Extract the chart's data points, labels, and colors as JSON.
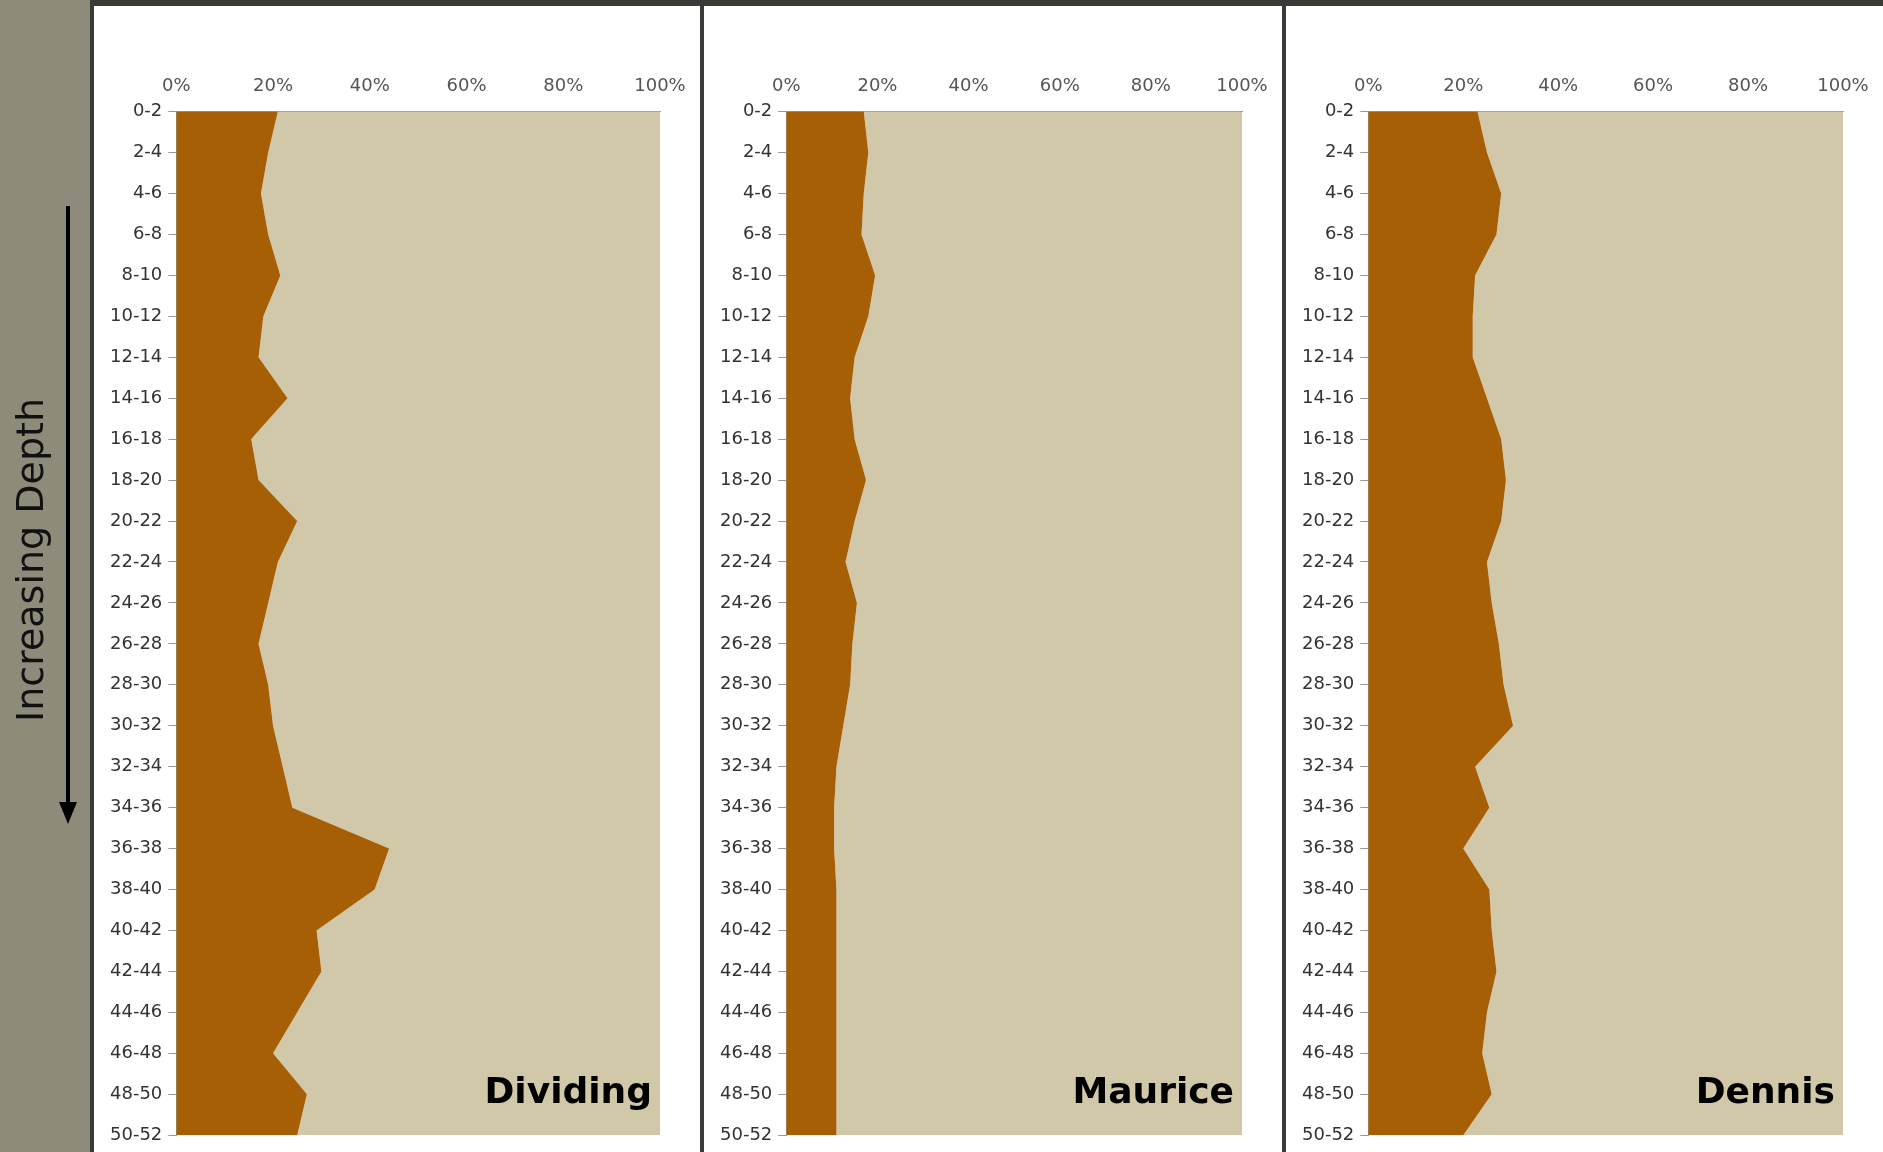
{
  "chart_data": [
    {
      "type": "area",
      "stacked": true,
      "orientation": "horizontal",
      "ylabel": "Increasing Depth",
      "annotations": [
        "Dividing"
      ],
      "categories": [
        "0-2",
        "2-4",
        "4-6",
        "6-8",
        "8-10",
        "10-12",
        "12-14",
        "14-16",
        "16-18",
        "18-20",
        "20-22",
        "22-24",
        "24-26",
        "26-28",
        "28-30",
        "30-32",
        "32-34",
        "34-36",
        "36-38",
        "38-40",
        "40-42",
        "42-44",
        "44-46",
        "46-48",
        "48-50",
        "50-52"
      ],
      "series": [
        {
          "color": "#a65f05",
          "values": [
            21,
            19,
            17.5,
            19,
            21.5,
            18,
            17,
            23,
            15.5,
            17,
            25,
            21,
            19,
            17,
            19,
            20,
            22,
            24,
            44,
            41,
            29,
            30,
            25,
            20,
            27,
            25
          ]
        },
        {
          "color": "#d0c8a8",
          "values": [
            79,
            81,
            82.5,
            81,
            78.5,
            82,
            83,
            77,
            84.5,
            83,
            75,
            79,
            81,
            83,
            81,
            80,
            78,
            76,
            56,
            59,
            71,
            70,
            75,
            80,
            73,
            75
          ]
        }
      ],
      "xlim": [
        0,
        100
      ],
      "xticks": [
        {
          "value": 0,
          "label": "0%"
        },
        {
          "value": 20,
          "label": "20%"
        },
        {
          "value": 40,
          "label": "40%"
        },
        {
          "value": 60,
          "label": "60%"
        },
        {
          "value": 80,
          "label": "80%"
        },
        {
          "value": 100,
          "label": "100%"
        }
      ]
    },
    {
      "type": "area",
      "stacked": true,
      "orientation": "horizontal",
      "annotations": [
        "Maurice"
      ],
      "categories": [
        "0-2",
        "2-4",
        "4-6",
        "6-8",
        "8-10",
        "10-12",
        "12-14",
        "14-16",
        "16-18",
        "18-20",
        "20-22",
        "22-24",
        "24-26",
        "26-28",
        "28-30",
        "30-32",
        "32-34",
        "34-36",
        "36-38",
        "38-40",
        "40-42",
        "42-44",
        "44-46",
        "46-48",
        "48-50",
        "50-52"
      ],
      "series": [
        {
          "color": "#a65f05",
          "values": [
            17,
            18,
            17,
            16.5,
            19.5,
            18,
            15,
            14,
            15,
            17.5,
            15,
            13,
            15.5,
            14.5,
            14,
            12.5,
            11,
            10.5,
            10.5,
            11,
            11,
            11,
            11,
            11,
            11,
            11
          ]
        },
        {
          "color": "#d0c8a8",
          "values": [
            83,
            82,
            83,
            83.5,
            80.5,
            82,
            85,
            86,
            85,
            82.5,
            85,
            87,
            84.5,
            85.5,
            86,
            87.5,
            89,
            89.5,
            89.5,
            89,
            89,
            89,
            89,
            89,
            89,
            89
          ]
        }
      ],
      "xlim": [
        0,
        100
      ],
      "xticks": [
        {
          "value": 0,
          "label": "0%"
        },
        {
          "value": 20,
          "label": "20%"
        },
        {
          "value": 40,
          "label": "40%"
        },
        {
          "value": 60,
          "label": "60%"
        },
        {
          "value": 80,
          "label": "80%"
        },
        {
          "value": 100,
          "label": "100%"
        }
      ]
    },
    {
      "type": "area",
      "stacked": true,
      "orientation": "horizontal",
      "annotations": [
        "Dennis"
      ],
      "categories": [
        "0-2",
        "2-4",
        "4-6",
        "6-8",
        "8-10",
        "10-12",
        "12-14",
        "14-16",
        "16-18",
        "18-20",
        "20-22",
        "22-24",
        "24-26",
        "26-28",
        "28-30",
        "30-32",
        "32-34",
        "34-36",
        "36-38",
        "38-40",
        "40-42",
        "42-44",
        "44-46",
        "46-48",
        "48-50",
        "50-52"
      ],
      "series": [
        {
          "color": "#a65f05",
          "values": [
            23,
            25,
            28,
            27,
            22.5,
            22,
            22,
            25,
            28,
            29,
            28,
            25,
            26,
            27.5,
            28.5,
            30.5,
            22.5,
            25.5,
            20,
            25.5,
            26,
            27,
            25,
            24,
            26,
            20
          ]
        },
        {
          "color": "#d0c8a8",
          "values": [
            77,
            75,
            72,
            73,
            77.5,
            78,
            78,
            75,
            72,
            71,
            72,
            75,
            74,
            72.5,
            71.5,
            69.5,
            77.5,
            74.5,
            80,
            74.5,
            74,
            73,
            75,
            76,
            74,
            80
          ]
        }
      ],
      "xlim": [
        0,
        100
      ],
      "xticks": [
        {
          "value": 0,
          "label": "0%"
        },
        {
          "value": 20,
          "label": "20%"
        },
        {
          "value": 40,
          "label": "40%"
        },
        {
          "value": 60,
          "label": "60%"
        },
        {
          "value": 80,
          "label": "80%"
        },
        {
          "value": 100,
          "label": "100%"
        }
      ]
    }
  ]
}
